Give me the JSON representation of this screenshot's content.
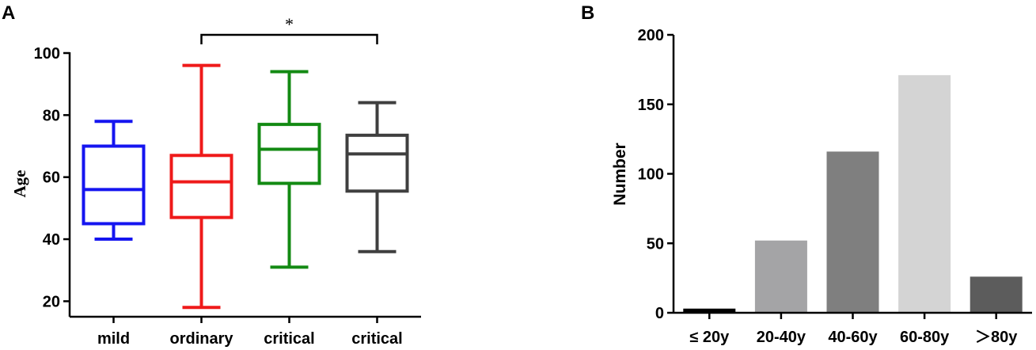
{
  "panels": {
    "a_label": "A",
    "b_label": "B"
  },
  "chart_data": [
    {
      "type": "box",
      "panel": "A",
      "ylabel": "Age",
      "ylim": [
        15,
        100
      ],
      "yticks": [
        20,
        40,
        60,
        80,
        100
      ],
      "categories": [
        "mild",
        "ordinary",
        "critical",
        "critical"
      ],
      "boxes": [
        {
          "min": 40,
          "q1": 45,
          "median": 56,
          "q3": 70,
          "max": 78,
          "color": "#1515f0"
        },
        {
          "min": 18,
          "q1": 47,
          "median": 58.5,
          "q3": 67,
          "max": 96,
          "color": "#ef1a1a"
        },
        {
          "min": 31,
          "q1": 58,
          "median": 69,
          "q3": 77,
          "max": 94,
          "color": "#138a13"
        },
        {
          "min": 36,
          "q1": 55.5,
          "median": 67.5,
          "q3": 73.5,
          "max": 84,
          "color": "#3f3f3f"
        }
      ],
      "significance": {
        "from": 1,
        "to": 3,
        "label": "*"
      },
      "grid": false
    },
    {
      "type": "bar",
      "panel": "B",
      "ylabel": "Number",
      "ylim": [
        0,
        200
      ],
      "yticks": [
        0,
        50,
        100,
        150,
        200
      ],
      "categories": [
        "≤ 20y",
        "20-40y",
        "40-60y",
        "60-80y",
        "＞80y"
      ],
      "values": [
        3,
        52,
        116,
        171,
        26
      ],
      "colors": [
        "#000000",
        "#a4a4a6",
        "#7f7f7f",
        "#d4d4d4",
        "#5c5c5c"
      ],
      "grid": false
    }
  ]
}
